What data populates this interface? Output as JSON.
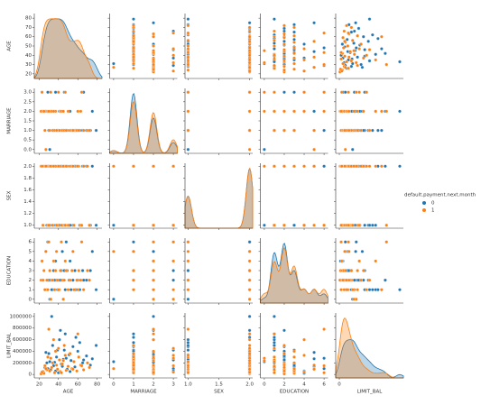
{
  "chart_data": {
    "type": "pairplot",
    "legend_title": "default.payment.next.month",
    "legend_position": "right",
    "variables": [
      {
        "name": "AGE",
        "lim": [
          15,
          85
        ],
        "yticks": [
          20,
          30,
          40,
          50,
          60,
          70,
          80
        ],
        "xticks": [
          20,
          40,
          60,
          80
        ]
      },
      {
        "name": "MARRIAGE",
        "lim": [
          -0.2,
          3.2
        ],
        "yticks": [
          {
            "value": 0,
            "label": "0.0"
          },
          {
            "value": 0.5,
            "label": "0.5"
          },
          {
            "value": 1,
            "label": "1.0"
          },
          {
            "value": 1.5,
            "label": "1.5"
          },
          {
            "value": 2,
            "label": "2.0"
          },
          {
            "value": 2.5,
            "label": "2.5"
          },
          {
            "value": 3,
            "label": "3.0"
          }
        ],
        "xticks": [
          0,
          1,
          2,
          3
        ]
      },
      {
        "name": "SEX",
        "lim": [
          0.95,
          2.05
        ],
        "yticks": [
          {
            "value": 1,
            "label": "1.0"
          },
          {
            "value": 1.2,
            "label": "1.2"
          },
          {
            "value": 1.4,
            "label": "1.4"
          },
          {
            "value": 1.6,
            "label": "1.6"
          },
          {
            "value": 1.8,
            "label": "1.8"
          },
          {
            "value": 2,
            "label": "2.0"
          }
        ],
        "xticks": [
          {
            "value": 1,
            "label": "1.0"
          },
          {
            "value": 1.5,
            "label": "1.5"
          },
          {
            "value": 2,
            "label": "2.0"
          }
        ]
      },
      {
        "name": "EDUCATION",
        "lim": [
          -0.4,
          6.4
        ],
        "yticks": [
          0,
          1,
          2,
          3,
          4,
          5,
          6
        ],
        "xticks": [
          0,
          2,
          4,
          6
        ]
      },
      {
        "name": "LIMIT_BAL",
        "lim": [
          -60000,
          1060000
        ],
        "yticks": [
          0,
          200000,
          400000,
          600000,
          800000,
          1000000
        ],
        "xticks": [
          0
        ]
      }
    ],
    "series": [
      {
        "name": "0",
        "color": "#1f77b4",
        "values": [
          [
            24,
            2,
            2,
            2,
            50000
          ],
          [
            26,
            2,
            2,
            1,
            120000
          ],
          [
            28,
            2,
            1,
            1,
            200000
          ],
          [
            30,
            1,
            2,
            2,
            360000
          ],
          [
            32,
            2,
            2,
            2,
            80000
          ],
          [
            34,
            1,
            1,
            1,
            500000
          ],
          [
            35,
            1,
            2,
            3,
            150000
          ],
          [
            36,
            2,
            2,
            2,
            210000
          ],
          [
            38,
            1,
            1,
            2,
            300000
          ],
          [
            39,
            1,
            2,
            1,
            420000
          ],
          [
            40,
            1,
            2,
            2,
            30000
          ],
          [
            41,
            2,
            1,
            1,
            600000
          ],
          [
            43,
            1,
            2,
            3,
            180000
          ],
          [
            45,
            1,
            1,
            2,
            260000
          ],
          [
            47,
            1,
            2,
            1,
            700000
          ],
          [
            49,
            1,
            2,
            3,
            90000
          ],
          [
            51,
            2,
            1,
            2,
            340000
          ],
          [
            53,
            1,
            2,
            1,
            240000
          ],
          [
            55,
            1,
            1,
            2,
            480000
          ],
          [
            57,
            1,
            2,
            3,
            130000
          ],
          [
            60,
            1,
            2,
            2,
            400000
          ],
          [
            62,
            1,
            1,
            1,
            550000
          ],
          [
            65,
            1,
            2,
            3,
            200000
          ],
          [
            69,
            1,
            2,
            2,
            320000
          ],
          [
            73,
            1,
            1,
            3,
            160000
          ],
          [
            75,
            2,
            2,
            5,
            270000
          ],
          [
            79,
            1,
            1,
            1,
            500000
          ],
          [
            23,
            2,
            2,
            4,
            20000
          ],
          [
            27,
            2,
            2,
            5,
            380000
          ],
          [
            29,
            3,
            2,
            6,
            100000
          ],
          [
            31,
            0,
            1,
            0,
            220000
          ],
          [
            33,
            2,
            2,
            1,
            1000000
          ],
          [
            37,
            3,
            1,
            4,
            60000
          ],
          [
            42,
            2,
            2,
            2,
            760000
          ],
          [
            44,
            1,
            2,
            5,
            140000
          ],
          [
            46,
            3,
            1,
            3,
            420000
          ],
          [
            48,
            1,
            2,
            6,
            280000
          ],
          [
            52,
            2,
            1,
            4,
            50000
          ],
          [
            58,
            1,
            2,
            1,
            640000
          ],
          [
            66,
            3,
            2,
            2,
            250000
          ]
        ]
      },
      {
        "name": "1",
        "color": "#ff7f0e",
        "values": [
          [
            22,
            2,
            2,
            2,
            10000
          ],
          [
            24,
            2,
            1,
            2,
            50000
          ],
          [
            25,
            2,
            2,
            3,
            20000
          ],
          [
            26,
            1,
            2,
            1,
            150000
          ],
          [
            28,
            2,
            2,
            2,
            80000
          ],
          [
            29,
            2,
            1,
            1,
            300000
          ],
          [
            31,
            1,
            2,
            3,
            60000
          ],
          [
            33,
            2,
            2,
            2,
            120000
          ],
          [
            34,
            1,
            1,
            2,
            200000
          ],
          [
            36,
            1,
            2,
            1,
            30000
          ],
          [
            37,
            2,
            2,
            3,
            400000
          ],
          [
            39,
            1,
            1,
            2,
            90000
          ],
          [
            41,
            1,
            2,
            1,
            250000
          ],
          [
            42,
            2,
            2,
            3,
            50000
          ],
          [
            44,
            1,
            1,
            2,
            180000
          ],
          [
            46,
            1,
            2,
            2,
            500000
          ],
          [
            48,
            1,
            2,
            3,
            70000
          ],
          [
            50,
            2,
            1,
            1,
            140000
          ],
          [
            52,
            1,
            2,
            2,
            360000
          ],
          [
            54,
            1,
            2,
            3,
            100000
          ],
          [
            56,
            1,
            1,
            1,
            220000
          ],
          [
            59,
            1,
            2,
            2,
            60000
          ],
          [
            61,
            1,
            2,
            3,
            300000
          ],
          [
            63,
            2,
            1,
            2,
            160000
          ],
          [
            66,
            1,
            2,
            1,
            80000
          ],
          [
            70,
            1,
            2,
            3,
            200000
          ],
          [
            72,
            1,
            1,
            2,
            120000
          ],
          [
            23,
            3,
            2,
            4,
            40000
          ],
          [
            27,
            0,
            2,
            5,
            100000
          ],
          [
            30,
            2,
            1,
            6,
            780000
          ],
          [
            32,
            3,
            2,
            0,
            280000
          ],
          [
            35,
            2,
            2,
            4,
            600000
          ],
          [
            38,
            1,
            1,
            5,
            160000
          ],
          [
            40,
            3,
            2,
            1,
            450000
          ],
          [
            43,
            2,
            1,
            6,
            30000
          ],
          [
            45,
            2,
            2,
            0,
            240000
          ],
          [
            47,
            3,
            1,
            4,
            330000
          ],
          [
            55,
            1,
            2,
            5,
            90000
          ],
          [
            60,
            2,
            2,
            1,
            700000
          ],
          [
            64,
            3,
            1,
            6,
            150000
          ]
        ]
      }
    ]
  }
}
